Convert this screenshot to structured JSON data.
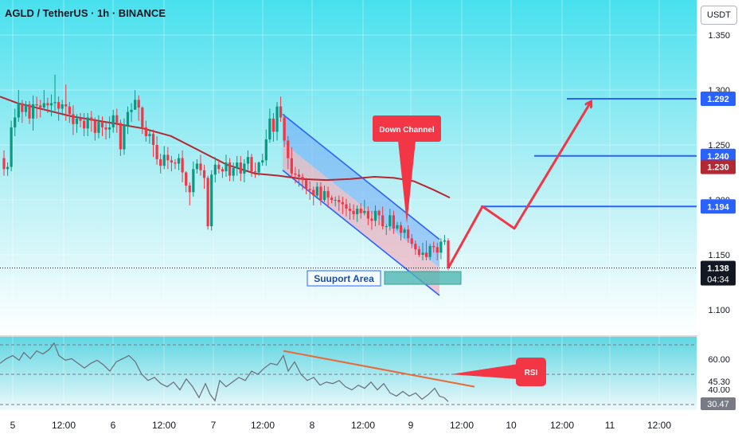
{
  "header": {
    "title": "AGLD / TetherUS · 1h · BINANCE",
    "currency": "USDT"
  },
  "colors": {
    "up": "#089981",
    "down": "#f23645",
    "accent": "#2962ff",
    "ma": "#b22833",
    "arrow": "#f23645"
  },
  "chart_data": [
    {
      "type": "candlestick",
      "title": "AGLD / TetherUS · 1h · BINANCE",
      "x_ticks": [
        "5",
        "12:00",
        "6",
        "12:00",
        "7",
        "12:00",
        "8",
        "12:00",
        "9",
        "12:00",
        "10",
        "12:00",
        "11",
        "12:00"
      ],
      "y_ticks": [
        "1.350",
        "1.300",
        "1.250",
        "1.200",
        "1.150",
        "1.100"
      ],
      "ylim": [
        1.083,
        1.369
      ],
      "last_price": "1.138",
      "countdown": "04:34",
      "ma_value": "1.230",
      "levels": [
        "1.292",
        "1.240",
        "1.194"
      ],
      "annotations": {
        "channel": "Down Channel",
        "support": "Suuport Area"
      },
      "candles": [
        [
          1.238,
          1.228,
          1.245,
          1.222
        ],
        [
          1.228,
          1.23,
          1.234,
          1.222
        ],
        [
          1.23,
          1.266,
          1.272,
          1.226
        ],
        [
          1.266,
          1.275,
          1.283,
          1.258
        ],
        [
          1.275,
          1.288,
          1.3,
          1.271
        ],
        [
          1.288,
          1.28,
          1.291,
          1.27
        ],
        [
          1.28,
          1.287,
          1.29,
          1.276
        ],
        [
          1.287,
          1.274,
          1.29,
          1.269
        ],
        [
          1.274,
          1.287,
          1.295,
          1.263
        ],
        [
          1.287,
          1.286,
          1.294,
          1.274
        ],
        [
          1.286,
          1.284,
          1.291,
          1.275
        ],
        [
          1.284,
          1.288,
          1.3,
          1.282
        ],
        [
          1.288,
          1.286,
          1.293,
          1.279
        ],
        [
          1.286,
          1.288,
          1.296,
          1.276
        ],
        [
          1.288,
          1.289,
          1.314,
          1.281
        ],
        [
          1.289,
          1.283,
          1.294,
          1.272
        ],
        [
          1.283,
          1.287,
          1.291,
          1.277
        ],
        [
          1.287,
          1.285,
          1.305,
          1.272
        ],
        [
          1.285,
          1.278,
          1.289,
          1.27
        ],
        [
          1.278,
          1.269,
          1.286,
          1.259
        ],
        [
          1.269,
          1.274,
          1.278,
          1.261
        ],
        [
          1.274,
          1.272,
          1.279,
          1.266
        ],
        [
          1.272,
          1.265,
          1.279,
          1.258
        ],
        [
          1.265,
          1.275,
          1.279,
          1.258
        ],
        [
          1.275,
          1.272,
          1.281,
          1.262
        ],
        [
          1.272,
          1.261,
          1.275,
          1.254
        ],
        [
          1.261,
          1.271,
          1.277,
          1.256
        ],
        [
          1.271,
          1.266,
          1.276,
          1.258
        ],
        [
          1.266,
          1.264,
          1.271,
          1.255
        ],
        [
          1.264,
          1.266,
          1.276,
          1.256
        ],
        [
          1.266,
          1.277,
          1.282,
          1.261
        ],
        [
          1.277,
          1.27,
          1.283,
          1.261
        ],
        [
          1.27,
          1.246,
          1.273,
          1.24
        ],
        [
          1.246,
          1.268,
          1.274,
          1.241
        ],
        [
          1.268,
          1.28,
          1.285,
          1.26
        ],
        [
          1.28,
          1.282,
          1.288,
          1.271
        ],
        [
          1.282,
          1.291,
          1.3,
          1.285
        ],
        [
          1.291,
          1.284,
          1.295,
          1.272
        ],
        [
          1.284,
          1.266,
          1.285,
          1.26
        ],
        [
          1.266,
          1.258,
          1.272,
          1.253
        ],
        [
          1.258,
          1.26,
          1.263,
          1.251
        ],
        [
          1.26,
          1.25,
          1.264,
          1.239
        ],
        [
          1.25,
          1.237,
          1.258,
          1.232
        ],
        [
          1.237,
          1.231,
          1.242,
          1.224
        ],
        [
          1.231,
          1.241,
          1.249,
          1.228
        ],
        [
          1.241,
          1.236,
          1.248,
          1.228
        ],
        [
          1.236,
          1.234,
          1.24,
          1.226
        ],
        [
          1.234,
          1.233,
          1.237,
          1.228
        ],
        [
          1.233,
          1.238,
          1.242,
          1.227
        ],
        [
          1.238,
          1.225,
          1.245,
          1.216
        ],
        [
          1.225,
          1.213,
          1.226,
          1.207
        ],
        [
          1.213,
          1.207,
          1.216,
          1.195
        ],
        [
          1.207,
          1.228,
          1.235,
          1.203
        ],
        [
          1.228,
          1.233,
          1.237,
          1.224
        ],
        [
          1.233,
          1.227,
          1.241,
          1.222
        ],
        [
          1.227,
          1.22,
          1.232,
          1.21
        ],
        [
          1.22,
          1.176,
          1.222,
          1.173
        ],
        [
          1.176,
          1.223,
          1.227,
          1.172
        ],
        [
          1.223,
          1.232,
          1.239,
          1.216
        ],
        [
          1.232,
          1.228,
          1.237,
          1.224
        ],
        [
          1.228,
          1.226,
          1.23,
          1.22
        ],
        [
          1.226,
          1.234,
          1.241,
          1.221
        ],
        [
          1.234,
          1.222,
          1.238,
          1.217
        ],
        [
          1.222,
          1.229,
          1.234,
          1.217
        ],
        [
          1.229,
          1.234,
          1.24,
          1.222
        ],
        [
          1.234,
          1.224,
          1.24,
          1.217
        ],
        [
          1.224,
          1.233,
          1.237,
          1.216
        ],
        [
          1.233,
          1.239,
          1.245,
          1.227
        ],
        [
          1.239,
          1.226,
          1.242,
          1.221
        ],
        [
          1.226,
          1.225,
          1.234,
          1.22
        ],
        [
          1.225,
          1.234,
          1.235,
          1.222
        ],
        [
          1.234,
          1.236,
          1.242,
          1.231
        ],
        [
          1.236,
          1.255,
          1.264,
          1.231
        ],
        [
          1.255,
          1.274,
          1.283,
          1.252
        ],
        [
          1.274,
          1.262,
          1.279,
          1.253
        ],
        [
          1.262,
          1.285,
          1.289,
          1.254
        ],
        [
          1.285,
          1.275,
          1.294,
          1.271
        ],
        [
          1.275,
          1.254,
          1.278,
          1.248
        ],
        [
          1.254,
          1.238,
          1.258,
          1.228
        ],
        [
          1.238,
          1.224,
          1.248,
          1.22
        ],
        [
          1.224,
          1.223,
          1.23,
          1.215
        ],
        [
          1.223,
          1.221,
          1.228,
          1.212
        ],
        [
          1.221,
          1.218,
          1.224,
          1.209
        ],
        [
          1.218,
          1.21,
          1.22,
          1.205
        ],
        [
          1.21,
          1.209,
          1.217,
          1.2
        ],
        [
          1.209,
          1.204,
          1.212,
          1.195
        ],
        [
          1.204,
          1.212,
          1.216,
          1.201
        ],
        [
          1.212,
          1.2,
          1.216,
          1.195
        ],
        [
          1.2,
          1.208,
          1.213,
          1.198
        ],
        [
          1.208,
          1.202,
          1.212,
          1.193
        ],
        [
          1.202,
          1.2,
          1.204,
          1.197
        ],
        [
          1.2,
          1.2,
          1.203,
          1.194
        ],
        [
          1.2,
          1.198,
          1.204,
          1.19
        ],
        [
          1.198,
          1.196,
          1.203,
          1.187
        ],
        [
          1.196,
          1.192,
          1.201,
          1.185
        ],
        [
          1.192,
          1.19,
          1.197,
          1.182
        ],
        [
          1.19,
          1.187,
          1.196,
          1.182
        ],
        [
          1.187,
          1.192,
          1.195,
          1.18
        ],
        [
          1.192,
          1.188,
          1.197,
          1.183
        ],
        [
          1.188,
          1.19,
          1.2,
          1.186
        ],
        [
          1.19,
          1.183,
          1.194,
          1.177
        ],
        [
          1.183,
          1.181,
          1.19,
          1.173
        ],
        [
          1.181,
          1.19,
          1.195,
          1.176
        ],
        [
          1.19,
          1.186,
          1.191,
          1.177
        ],
        [
          1.186,
          1.176,
          1.194,
          1.173
        ],
        [
          1.176,
          1.176,
          1.178,
          1.168
        ],
        [
          1.176,
          1.186,
          1.192,
          1.172
        ],
        [
          1.186,
          1.174,
          1.19,
          1.169
        ],
        [
          1.174,
          1.177,
          1.18,
          1.172
        ],
        [
          1.177,
          1.17,
          1.18,
          1.163
        ],
        [
          1.17,
          1.173,
          1.175,
          1.165
        ],
        [
          1.173,
          1.165,
          1.177,
          1.161
        ],
        [
          1.165,
          1.16,
          1.169,
          1.156
        ],
        [
          1.16,
          1.155,
          1.163,
          1.15
        ],
        [
          1.155,
          1.15,
          1.158,
          1.148
        ],
        [
          1.15,
          1.152,
          1.161,
          1.145
        ],
        [
          1.152,
          1.148,
          1.163,
          1.145
        ],
        [
          1.148,
          1.158,
          1.16,
          1.145
        ],
        [
          1.158,
          1.157,
          1.162,
          1.152
        ],
        [
          1.157,
          1.152,
          1.161,
          1.145
        ],
        [
          1.152,
          1.162,
          1.165,
          1.146
        ],
        [
          1.162,
          1.163,
          1.168,
          1.159
        ],
        [
          1.163,
          1.138,
          1.165,
          1.136
        ]
      ],
      "ma": [
        [
          0,
          1.294
        ],
        [
          22,
          1.288
        ],
        [
          45,
          1.284
        ],
        [
          90,
          1.276
        ],
        [
          140,
          1.27
        ],
        [
          180,
          1.265
        ],
        [
          215,
          1.258
        ],
        [
          250,
          1.245
        ],
        [
          285,
          1.232
        ],
        [
          320,
          1.224
        ],
        [
          350,
          1.222
        ],
        [
          380,
          1.219
        ],
        [
          410,
          1.218
        ],
        [
          440,
          1.219
        ],
        [
          470,
          1.221
        ],
        [
          495,
          1.22
        ],
        [
          520,
          1.217
        ],
        [
          545,
          1.209
        ],
        [
          565,
          1.202
        ]
      ],
      "channel": {
        "upper": [
          [
            355,
            1.278
          ],
          [
            552,
            1.164
          ]
        ],
        "lower": [
          [
            355,
            1.227
          ],
          [
            552,
            1.113
          ]
        ]
      },
      "projection": [
        [
          563,
          1.138
        ],
        [
          606,
          1.194
        ],
        [
          646,
          1.174
        ],
        [
          742,
          1.289
        ]
      ],
      "rsi": {
        "labels": [
          "60.00",
          "45.30",
          "40.00",
          "30.47"
        ],
        "ylim": [
          25,
          72
        ],
        "values": [
          [
            0,
            55
          ],
          [
            8,
            58
          ],
          [
            16,
            60
          ],
          [
            24,
            57
          ],
          [
            30,
            62
          ],
          [
            38,
            58
          ],
          [
            46,
            63
          ],
          [
            54,
            61
          ],
          [
            62,
            64
          ],
          [
            68,
            68
          ],
          [
            74,
            60
          ],
          [
            82,
            57
          ],
          [
            90,
            58
          ],
          [
            98,
            55
          ],
          [
            106,
            52
          ],
          [
            114,
            55
          ],
          [
            122,
            57
          ],
          [
            130,
            54
          ],
          [
            138,
            50
          ],
          [
            146,
            56
          ],
          [
            154,
            58
          ],
          [
            162,
            60
          ],
          [
            170,
            56
          ],
          [
            178,
            48
          ],
          [
            186,
            44
          ],
          [
            194,
            46
          ],
          [
            202,
            42
          ],
          [
            210,
            40
          ],
          [
            218,
            43
          ],
          [
            226,
            38
          ],
          [
            234,
            45
          ],
          [
            242,
            40
          ],
          [
            250,
            33
          ],
          [
            258,
            42
          ],
          [
            264,
            35
          ],
          [
            270,
            31
          ],
          [
            276,
            44
          ],
          [
            284,
            40
          ],
          [
            292,
            43
          ],
          [
            300,
            46
          ],
          [
            308,
            44
          ],
          [
            316,
            50
          ],
          [
            324,
            48
          ],
          [
            332,
            52
          ],
          [
            340,
            55
          ],
          [
            348,
            54
          ],
          [
            356,
            60
          ],
          [
            362,
            50
          ],
          [
            370,
            56
          ],
          [
            378,
            48
          ],
          [
            386,
            44
          ],
          [
            394,
            46
          ],
          [
            402,
            41
          ],
          [
            410,
            43
          ],
          [
            418,
            42
          ],
          [
            426,
            44
          ],
          [
            434,
            40
          ],
          [
            442,
            38
          ],
          [
            450,
            41
          ],
          [
            458,
            39
          ],
          [
            466,
            43
          ],
          [
            474,
            38
          ],
          [
            482,
            42
          ],
          [
            490,
            36
          ],
          [
            498,
            34
          ],
          [
            506,
            37
          ],
          [
            514,
            34
          ],
          [
            522,
            36
          ],
          [
            530,
            32
          ],
          [
            538,
            35
          ],
          [
            546,
            39
          ],
          [
            552,
            34
          ],
          [
            558,
            33
          ],
          [
            563,
            30.47
          ]
        ],
        "trendline": [
          [
            356,
            63
          ],
          [
            596,
            40
          ]
        ],
        "label": "RSI"
      }
    }
  ]
}
